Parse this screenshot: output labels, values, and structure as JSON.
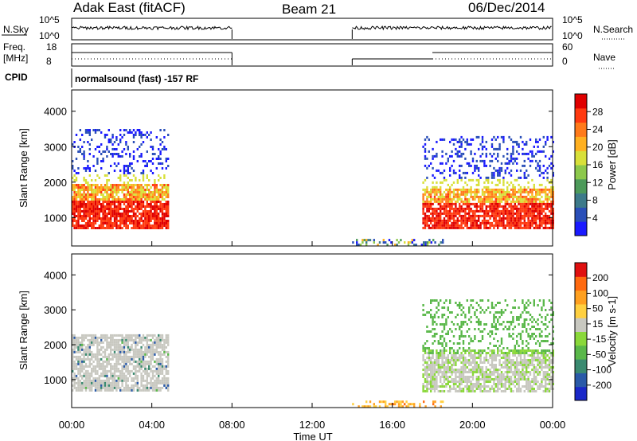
{
  "header": {
    "radar": "Adak East (fitACF)",
    "beam": "Beam 21",
    "date": "06/Dec/2014"
  },
  "strip_nsky": {
    "left_label": "N.Sky",
    "left_ticks": [
      "10^5",
      "10^0"
    ],
    "right_label": "N.Search",
    "right_ticks": [
      "10^5",
      "10^0"
    ]
  },
  "strip_freq": {
    "left_label_1": "Freq.",
    "left_label_2": "[MHz]",
    "left_ticks": [
      "18",
      "8"
    ],
    "right_label": "Nave",
    "right_ticks": [
      "60",
      "0"
    ]
  },
  "cpid": {
    "label": "CPID",
    "text": "normalsound (fast) -157 RF"
  },
  "colors": {
    "missing": "#ffffff",
    "axis": "#000000"
  },
  "chart_data": [
    {
      "type": "heatmap",
      "panel": "power",
      "ylabel": "Slant Range [km]",
      "xlabel": "",
      "ylim": [
        200,
        4600
      ],
      "yticks": [
        "1000",
        "2000",
        "3000",
        "4000"
      ],
      "colorbar": {
        "label": "Power [dB]",
        "ticks": [
          "28",
          "24",
          "20",
          "16",
          "12",
          "8",
          "4"
        ],
        "colors": [
          "#1a1aff",
          "#2a4fb8",
          "#3d7a8a",
          "#4d9a5a",
          "#8cc84b",
          "#d8e03a",
          "#ffb020",
          "#ff7a1a",
          "#ff3a10",
          "#e00000"
        ]
      },
      "echo_regions": [
        {
          "t": [
            0.0,
            4.8
          ],
          "range": [
            700,
            3500
          ],
          "level": "high"
        },
        {
          "t": [
            13.9,
            18.5
          ],
          "range": [
            200,
            400
          ],
          "level": "low"
        },
        {
          "t": [
            17.5,
            24.0
          ],
          "range": [
            700,
            3300
          ],
          "level": "high"
        }
      ]
    },
    {
      "type": "heatmap",
      "panel": "velocity",
      "ylabel": "Slant Range [km]",
      "xlabel": "Time UT",
      "ylim": [
        200,
        4600
      ],
      "yticks": [
        "1000",
        "2000",
        "3000",
        "4000"
      ],
      "xticks": [
        "00:00",
        "04:00",
        "08:00",
        "12:00",
        "16:00",
        "20:00",
        "00:00"
      ],
      "colorbar": {
        "label": "Velocity [m s-1]",
        "ticks": [
          "200",
          "100",
          "50",
          "15",
          "-15",
          "-50",
          "-100",
          "-200"
        ],
        "colors": [
          "#1a28c8",
          "#2a5aa8",
          "#3a8a70",
          "#5ab84a",
          "#8ad83a",
          "#c8c8c0",
          "#ffd040",
          "#ffa020",
          "#ff6a10",
          "#e01010"
        ]
      },
      "echo_regions": [
        {
          "t": [
            0.0,
            4.8
          ],
          "range": [
            700,
            2300
          ],
          "level": "ground"
        },
        {
          "t": [
            13.9,
            18.5
          ],
          "range": [
            200,
            400
          ],
          "level": "low"
        },
        {
          "t": [
            17.5,
            24.0
          ],
          "range": [
            700,
            3300
          ],
          "level": "mixed"
        }
      ]
    }
  ]
}
